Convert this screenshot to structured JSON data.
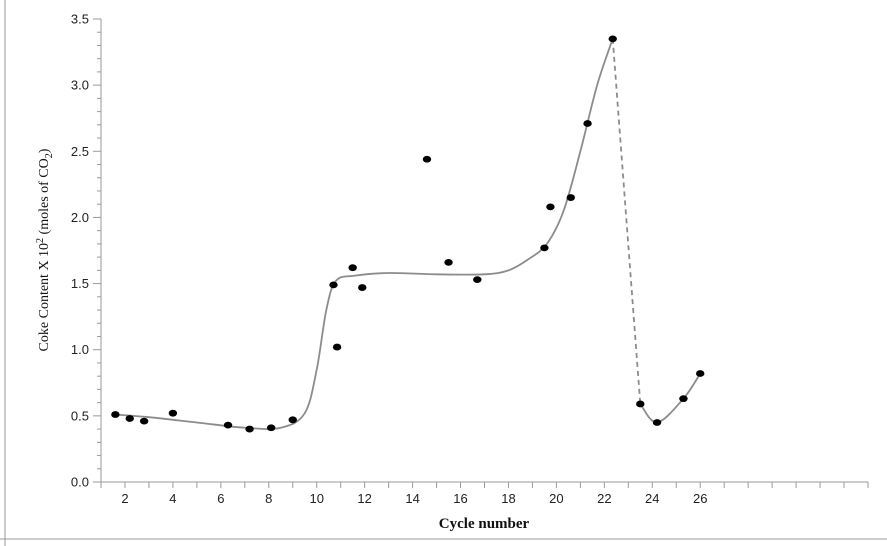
{
  "chart_data": {
    "type": "scatter",
    "title": "",
    "xlabel": "Cycle number",
    "ylabel": {
      "prefix": "Coke Content X 10",
      "sup": "2",
      "mid": " (moles of CO",
      "sub": "2",
      "suffix": ")"
    },
    "xlim": [
      1,
      33
    ],
    "ylim": [
      0,
      3.5
    ],
    "x_ticks": [
      2,
      4,
      6,
      8,
      10,
      12,
      14,
      16,
      18,
      20,
      22,
      24,
      26
    ],
    "y_ticks": [
      0.0,
      0.5,
      1.0,
      1.5,
      2.0,
      2.5,
      3.0,
      3.5
    ],
    "y_tick_labels": [
      "0.0",
      "0.5",
      "1.0",
      "1.5",
      "2.0",
      "2.5",
      "3.0",
      "3.5"
    ],
    "grid": false,
    "colors": {
      "points": "#000000",
      "fit_line": "#8c8c8c",
      "axis": "#9a9a9a"
    },
    "series": [
      {
        "type": "scatter",
        "x": [
          1.6,
          2.2,
          2.8,
          4.0,
          6.3,
          7.2,
          8.1,
          9.0,
          10.7,
          10.85,
          11.5,
          11.9,
          14.6,
          15.5,
          16.7,
          19.5,
          19.75,
          20.6,
          21.3,
          22.35,
          23.5,
          24.2,
          25.3,
          26.0
        ],
        "y": [
          0.51,
          0.48,
          0.46,
          0.52,
          0.43,
          0.4,
          0.41,
          0.47,
          1.49,
          1.02,
          1.62,
          1.47,
          2.44,
          1.66,
          1.53,
          1.77,
          2.08,
          2.15,
          2.71,
          3.35,
          0.59,
          0.45,
          0.63,
          0.82
        ]
      },
      {
        "type": "line",
        "style": "smooth",
        "x": [
          1.6,
          3.0,
          5.0,
          7.0,
          8.5,
          9.5,
          10.0,
          10.4,
          10.8,
          11.6,
          13.0,
          15.0,
          17.0,
          18.0,
          18.8,
          19.6,
          20.3,
          21.0,
          21.7,
          22.35
        ],
        "y": [
          0.51,
          0.49,
          0.45,
          0.41,
          0.41,
          0.52,
          0.85,
          1.3,
          1.52,
          1.56,
          1.58,
          1.57,
          1.57,
          1.6,
          1.68,
          1.8,
          2.05,
          2.5,
          3.0,
          3.35
        ]
      },
      {
        "type": "line",
        "style": "dashed",
        "x": [
          22.35,
          23.5
        ],
        "y": [
          3.35,
          0.59
        ]
      },
      {
        "type": "line",
        "style": "smooth",
        "x": [
          23.5,
          24.2,
          25.3,
          26.0
        ],
        "y": [
          0.59,
          0.45,
          0.63,
          0.82
        ]
      }
    ]
  }
}
